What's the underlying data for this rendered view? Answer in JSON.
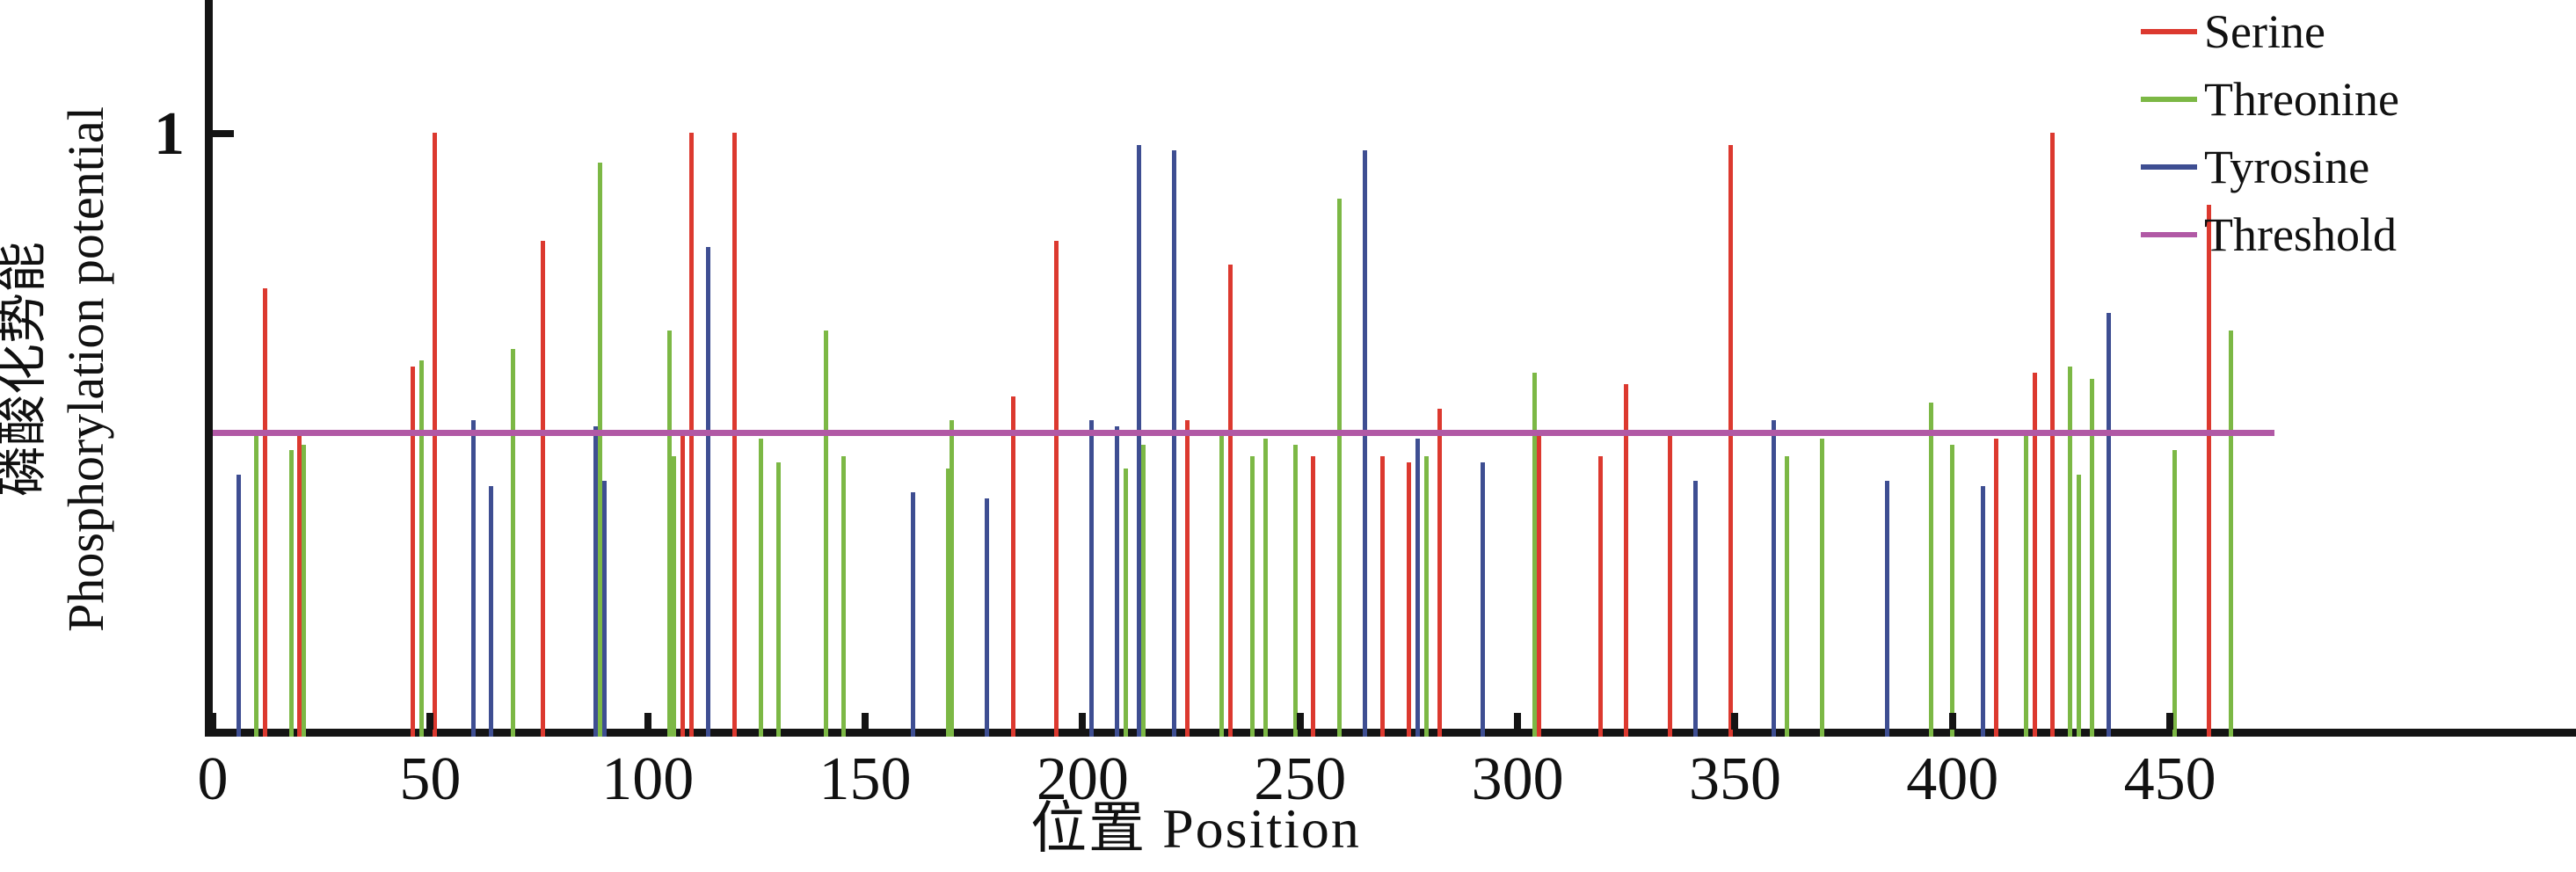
{
  "figure": {
    "y_axis": {
      "tick_label": "1",
      "title_cn": "磷酸化势能",
      "title_en": "Phosphorylation potential"
    },
    "x_axis": {
      "title": "位置 Position",
      "tick_labels": [
        "0",
        "50",
        "100",
        "150",
        "200",
        "250",
        "300",
        "350",
        "400",
        "450"
      ]
    }
  },
  "colors": {
    "serine": "#dc392f",
    "threonine": "#7cb845",
    "tyrosine": "#3e4e92",
    "threshold": "#b159a5",
    "axis": "#141414"
  },
  "chart_data": {
    "type": "bar",
    "subtype": "stem-plot",
    "title": "",
    "xlabel": "位置 Position",
    "ylabel": "磷酸化势能 Phosphorylation potential",
    "xlim": [
      0,
      543
    ],
    "ylim": [
      0,
      1.22
    ],
    "x_ticks": [
      0,
      50,
      100,
      150,
      200,
      250,
      300,
      350,
      400,
      450
    ],
    "y_ticks": [
      1
    ],
    "grid": false,
    "legend_position": "top-right",
    "threshold": {
      "name": "Threshold",
      "value": 0.5,
      "x_start": 0,
      "x_end": 474,
      "color": "#b159a5"
    },
    "series": [
      {
        "name": "Serine",
        "color": "#dc392f",
        "points": [
          [
            12,
            0.74
          ],
          [
            20,
            0.5
          ],
          [
            46,
            0.61
          ],
          [
            51,
            1.0
          ],
          [
            76,
            0.82
          ],
          [
            108,
            0.5
          ],
          [
            110,
            1.0
          ],
          [
            120,
            1.0
          ],
          [
            184,
            0.56
          ],
          [
            194,
            0.82
          ],
          [
            224,
            0.52
          ],
          [
            234,
            0.78
          ],
          [
            253,
            0.46
          ],
          [
            269,
            0.46
          ],
          [
            275,
            0.45
          ],
          [
            282,
            0.54
          ],
          [
            305,
            0.5
          ],
          [
            319,
            0.46
          ],
          [
            325,
            0.58
          ],
          [
            335,
            0.5
          ],
          [
            349,
            0.98
          ],
          [
            410,
            0.49
          ],
          [
            419,
            0.6
          ],
          [
            423,
            1.0
          ],
          [
            459,
            0.88
          ]
        ]
      },
      {
        "name": "Threonine",
        "color": "#7cb845",
        "points": [
          [
            10,
            0.5
          ],
          [
            18,
            0.47
          ],
          [
            21,
            0.48
          ],
          [
            48,
            0.62
          ],
          [
            69,
            0.64
          ],
          [
            89,
            0.95
          ],
          [
            105,
            0.67
          ],
          [
            106,
            0.46
          ],
          [
            126,
            0.49
          ],
          [
            130,
            0.45
          ],
          [
            141,
            0.67
          ],
          [
            145,
            0.46
          ],
          [
            169,
            0.44
          ],
          [
            170,
            0.52
          ],
          [
            210,
            0.44
          ],
          [
            214,
            0.48
          ],
          [
            232,
            0.5
          ],
          [
            239,
            0.46
          ],
          [
            242,
            0.49
          ],
          [
            249,
            0.48
          ],
          [
            259,
            0.89
          ],
          [
            279,
            0.46
          ],
          [
            304,
            0.6
          ],
          [
            362,
            0.46
          ],
          [
            370,
            0.49
          ],
          [
            395,
            0.55
          ],
          [
            400,
            0.48
          ],
          [
            417,
            0.5
          ],
          [
            427,
            0.61
          ],
          [
            429,
            0.43
          ],
          [
            432,
            0.59
          ],
          [
            451,
            0.47
          ],
          [
            464,
            0.67
          ]
        ]
      },
      {
        "name": "Tyrosine",
        "color": "#3e4e92",
        "points": [
          [
            6,
            0.43
          ],
          [
            60,
            0.52
          ],
          [
            64,
            0.41
          ],
          [
            88,
            0.51
          ],
          [
            90,
            0.42
          ],
          [
            114,
            0.81
          ],
          [
            161,
            0.4
          ],
          [
            178,
            0.39
          ],
          [
            202,
            0.52
          ],
          [
            208,
            0.51
          ],
          [
            213,
            0.98
          ],
          [
            221,
            0.97
          ],
          [
            265,
            0.97
          ],
          [
            277,
            0.49
          ],
          [
            292,
            0.45
          ],
          [
            341,
            0.42
          ],
          [
            359,
            0.52
          ],
          [
            385,
            0.42
          ],
          [
            407,
            0.41
          ],
          [
            436,
            0.7
          ]
        ]
      }
    ],
    "legend_entries": [
      "Serine",
      "Threonine",
      "Tyrosine",
      "Threshold"
    ]
  }
}
